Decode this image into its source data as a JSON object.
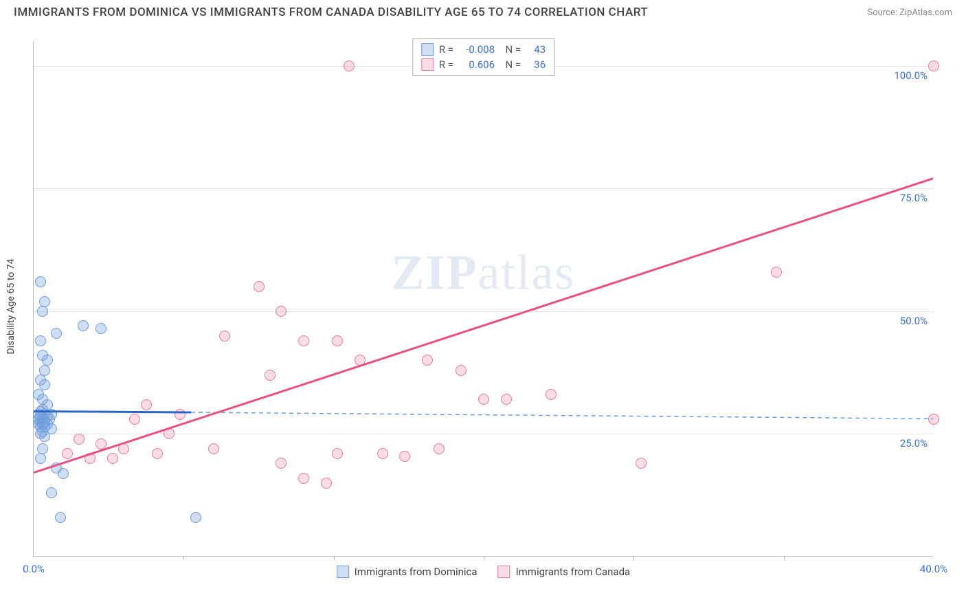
{
  "title": "IMMIGRANTS FROM DOMINICA VS IMMIGRANTS FROM CANADA DISABILITY AGE 65 TO 74 CORRELATION CHART",
  "source": "Source: ZipAtlas.com",
  "y_axis_label": "Disability Age 65 to 74",
  "watermark": "ZIPatlas",
  "chart": {
    "type": "scatter",
    "xlim": [
      0,
      40
    ],
    "ylim": [
      0,
      105
    ],
    "x_ticks": [
      0,
      40
    ],
    "x_tick_labels": [
      "0.0%",
      "40.0%"
    ],
    "x_minor_ticks": [
      6.67,
      13.33,
      20,
      26.67,
      33.33
    ],
    "y_ticks": [
      25,
      50,
      75,
      100
    ],
    "y_tick_labels": [
      "25.0%",
      "50.0%",
      "75.0%",
      "100.0%"
    ],
    "background_color": "#ffffff",
    "grid_color": "#cccccc",
    "axis_color": "#bbbbbb",
    "tick_label_color": "#3b6fd6",
    "marker_radius": 8
  },
  "series": [
    {
      "name": "Immigrants from Dominica",
      "fill": "rgba(120,160,220,0.35)",
      "stroke": "#6a9be0",
      "R": "-0.008",
      "N": "43",
      "trend": {
        "x1": 0,
        "y1": 29.5,
        "x2": 7,
        "y2": 29.3,
        "dash_after_x": 7,
        "x3": 40,
        "y3": 28.0,
        "solid_color": "#2a66c9",
        "dash_color": "#6a9be0",
        "solid_width": 3,
        "dash_width": 1.5
      },
      "points": [
        [
          0.3,
          56
        ],
        [
          0.4,
          50
        ],
        [
          0.5,
          52
        ],
        [
          1.0,
          45.5
        ],
        [
          2.2,
          47
        ],
        [
          3.0,
          46.5
        ],
        [
          0.3,
          44
        ],
        [
          0.4,
          41
        ],
        [
          0.6,
          40
        ],
        [
          0.3,
          36
        ],
        [
          0.5,
          35
        ],
        [
          0.2,
          33
        ],
        [
          0.4,
          32
        ],
        [
          0.6,
          31
        ],
        [
          0.4,
          30
        ],
        [
          0.3,
          29.5
        ],
        [
          0.2,
          29
        ],
        [
          0.5,
          29
        ],
        [
          0.8,
          29
        ],
        [
          0.3,
          28.5
        ],
        [
          0.6,
          28.5
        ],
        [
          0.2,
          28
        ],
        [
          0.4,
          28
        ],
        [
          0.7,
          28
        ],
        [
          0.3,
          27.5
        ],
        [
          0.5,
          27.5
        ],
        [
          0.2,
          27
        ],
        [
          0.4,
          27
        ],
        [
          0.6,
          27
        ],
        [
          0.3,
          26.5
        ],
        [
          0.5,
          26.5
        ],
        [
          0.8,
          26
        ],
        [
          0.4,
          25.5
        ],
        [
          0.3,
          25
        ],
        [
          0.5,
          24.5
        ],
        [
          0.4,
          22
        ],
        [
          0.3,
          20
        ],
        [
          1.0,
          18
        ],
        [
          1.3,
          17
        ],
        [
          0.8,
          13
        ],
        [
          1.2,
          8
        ],
        [
          7.2,
          8
        ],
        [
          0.5,
          38
        ]
      ]
    },
    {
      "name": "Immigrants from Canada",
      "fill": "rgba(240,140,170,0.30)",
      "stroke": "#e77aa0",
      "R": "0.606",
      "N": "36",
      "trend": {
        "x1": 0,
        "y1": 17,
        "x2": 40,
        "y2": 77,
        "solid_color": "#e94f83",
        "solid_width": 3
      },
      "points": [
        [
          14.0,
          100
        ],
        [
          40.0,
          100
        ],
        [
          10.0,
          55
        ],
        [
          11.0,
          50
        ],
        [
          33.0,
          58
        ],
        [
          8.5,
          45
        ],
        [
          12.0,
          44
        ],
        [
          13.5,
          44
        ],
        [
          14.5,
          40
        ],
        [
          17.5,
          40
        ],
        [
          19.0,
          38
        ],
        [
          10.5,
          37
        ],
        [
          5.0,
          31
        ],
        [
          6.5,
          29
        ],
        [
          4.5,
          28
        ],
        [
          23.0,
          33
        ],
        [
          40.0,
          28
        ],
        [
          6.0,
          25
        ],
        [
          2.0,
          24
        ],
        [
          3.0,
          23
        ],
        [
          8.0,
          22
        ],
        [
          4.0,
          22
        ],
        [
          5.5,
          21
        ],
        [
          1.5,
          21
        ],
        [
          2.5,
          20
        ],
        [
          3.5,
          20
        ],
        [
          13.5,
          21
        ],
        [
          15.5,
          21
        ],
        [
          16.5,
          20.5
        ],
        [
          11.0,
          19
        ],
        [
          12.0,
          16
        ],
        [
          13.0,
          15
        ],
        [
          27.0,
          19
        ],
        [
          20.0,
          32
        ],
        [
          21.0,
          32
        ],
        [
          18.0,
          22
        ]
      ]
    }
  ],
  "stats_legend": {
    "R_label": "R =",
    "N_label": "N ="
  }
}
